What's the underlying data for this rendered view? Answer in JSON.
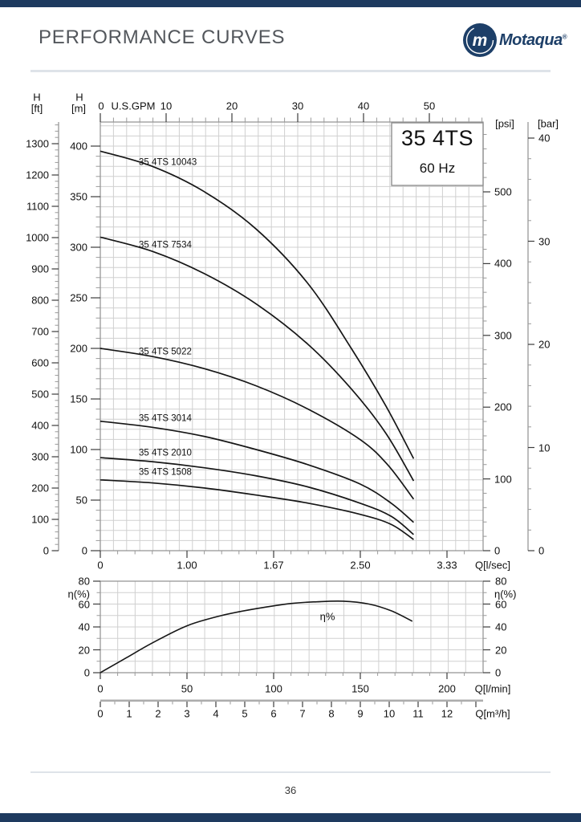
{
  "page": {
    "title": "PERFORMANCE CURVES",
    "brand": "Motaqua",
    "registered_mark": "®",
    "logo_monogram": "m",
    "page_number": "36"
  },
  "colors": {
    "navy": "#1e3a5f",
    "title_text": "#53575c",
    "grid": "#d0d0d0",
    "frame": "#8f8f8f",
    "tick": "#3c3c3c",
    "curve": "#161616",
    "divider": "#dee3e9",
    "ruler": "#adadad"
  },
  "chart_data": [
    {
      "type": "line",
      "model_box": {
        "model": "35 4TS",
        "frequency": "60 Hz"
      },
      "axes": {
        "gpm": {
          "label": "U.S.GPM",
          "ticks": [
            0,
            10,
            20,
            30,
            40,
            50
          ]
        },
        "lsec": {
          "label": "Q[l/sec]",
          "tick_labels": [
            "0",
            "1.00",
            "1.67",
            "2.50",
            "3.33"
          ]
        },
        "ft": {
          "label_top": "H",
          "label_unit": "[ft]",
          "min": 0,
          "max": 1300,
          "step": 100
        },
        "m": {
          "label_top": "H",
          "label_unit": "[m]",
          "min": 0,
          "max": 400,
          "step": 50
        },
        "psi": {
          "label": "[psi]",
          "min": 0,
          "max": 500,
          "step": 100
        },
        "bar": {
          "label": "[bar]",
          "min": 0,
          "max": 40,
          "step": 10
        }
      },
      "series": [
        {
          "name": "35 4TS 10043",
          "points": [
            [
              0,
              395
            ],
            [
              30,
              380
            ],
            [
              60,
              355
            ],
            [
              90,
              318
            ],
            [
              120,
              264
            ],
            [
              145,
              200
            ],
            [
              165,
              143
            ],
            [
              181,
              91
            ]
          ]
        },
        {
          "name": "35 4TS 7534",
          "points": [
            [
              0,
              310
            ],
            [
              30,
              296
            ],
            [
              60,
              274
            ],
            [
              90,
              244
            ],
            [
              120,
              204
            ],
            [
              145,
              160
            ],
            [
              165,
              116
            ],
            [
              181,
              69
            ]
          ]
        },
        {
          "name": "35 4TS 5022",
          "points": [
            [
              0,
              200
            ],
            [
              30,
              192
            ],
            [
              60,
              180
            ],
            [
              90,
              163
            ],
            [
              120,
              140
            ],
            [
              150,
              110
            ],
            [
              166,
              85
            ],
            [
              181,
              51
            ]
          ]
        },
        {
          "name": "35 4TS 3014",
          "points": [
            [
              0,
              128
            ],
            [
              30,
              122
            ],
            [
              60,
              113
            ],
            [
              90,
              100
            ],
            [
              120,
              85
            ],
            [
              150,
              66
            ],
            [
              168,
              47
            ],
            [
              181,
              28
            ]
          ]
        },
        {
          "name": "35 4TS 2010",
          "points": [
            [
              0,
              92
            ],
            [
              30,
              88
            ],
            [
              60,
              82
            ],
            [
              90,
              74
            ],
            [
              120,
              63
            ],
            [
              150,
              47
            ],
            [
              168,
              34
            ],
            [
              181,
              16
            ]
          ]
        },
        {
          "name": "35 4TS 1508",
          "points": [
            [
              0,
              70
            ],
            [
              30,
              67
            ],
            [
              60,
              62
            ],
            [
              90,
              55
            ],
            [
              120,
              47
            ],
            [
              150,
              36
            ],
            [
              168,
              26
            ],
            [
              181,
              11
            ]
          ]
        }
      ],
      "x_unit_flow": "l/min",
      "y_unit_head": "m"
    },
    {
      "type": "line",
      "axes": {
        "eta": {
          "label": "η(%)",
          "min": 0,
          "max": 80,
          "step": 20
        },
        "lmin": {
          "label": "Q[l/min]",
          "ticks": [
            0,
            50,
            100,
            150,
            200
          ]
        },
        "m3h": {
          "label": "Q[m³/h]",
          "ticks": [
            0,
            1,
            2,
            3,
            4,
            5,
            6,
            7,
            8,
            9,
            10,
            11,
            12
          ]
        }
      },
      "series": [
        {
          "name": "η%",
          "points": [
            [
              0,
              0
            ],
            [
              15,
              13
            ],
            [
              30,
              26
            ],
            [
              50,
              41
            ],
            [
              70,
              50
            ],
            [
              90,
              56
            ],
            [
              110,
              60.5
            ],
            [
              125,
              62
            ],
            [
              140,
              62.5
            ],
            [
              155,
              60
            ],
            [
              168,
              54
            ],
            [
              180,
              45
            ]
          ]
        }
      ]
    }
  ]
}
